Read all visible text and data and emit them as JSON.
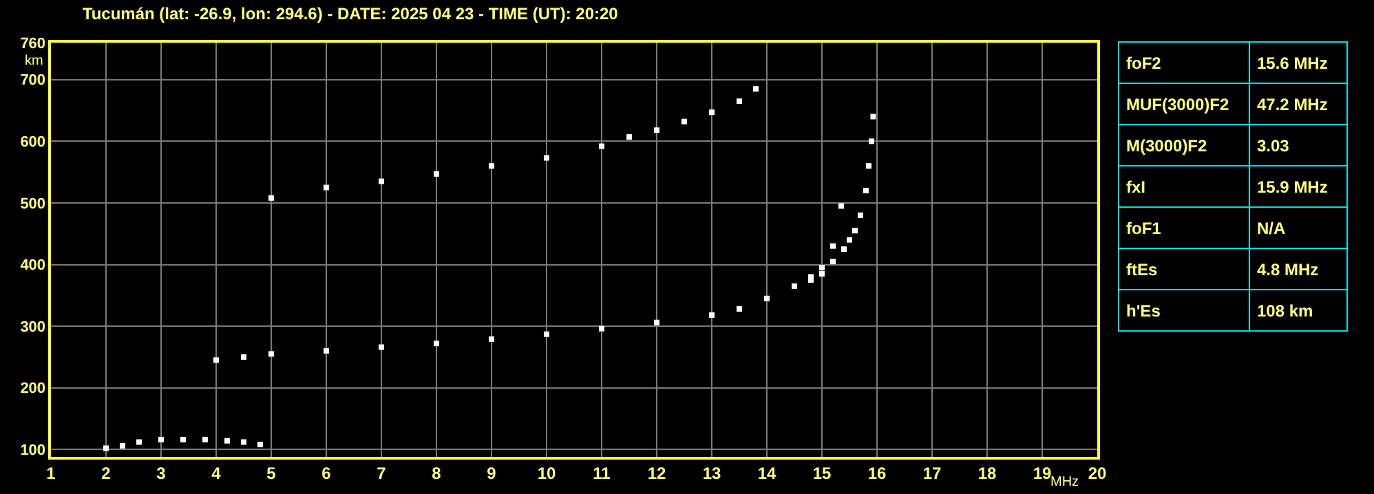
{
  "chart_data": [
    {
      "type": "scatter",
      "title": "Tucumán (lat: -26.9, lon: 294.6) - DATE: 2025 04 23 - TIME (UT): 20:20",
      "xlabel": "MHz",
      "ylabel": "km",
      "series": [
        {
          "color": "#ffffff",
          "x": [
            2,
            2.3,
            2.6,
            3,
            3.4,
            3.8,
            4.2,
            4.5,
            4.8
          ],
          "values": [
            102,
            106,
            112,
            116,
            116,
            116,
            114,
            112,
            108
          ]
        },
        {
          "color": "#ffffff",
          "x": [
            4,
            4.5,
            5,
            6,
            7,
            8,
            9,
            10,
            11,
            12,
            13,
            13.5,
            14,
            14.5,
            14.8,
            15,
            15.2,
            15.35
          ],
          "values": [
            245,
            250,
            255,
            260,
            266,
            272,
            279,
            287,
            296,
            306,
            318,
            328,
            345,
            365,
            380,
            395,
            430,
            495
          ]
        },
        {
          "color": "#ffffff",
          "x": [
            14.8,
            15,
            15.2,
            15.4,
            15.5,
            15.6,
            15.7,
            15.8,
            15.85,
            15.9,
            15.93
          ],
          "values": [
            375,
            385,
            405,
            425,
            440,
            455,
            480,
            520,
            560,
            600,
            640
          ]
        },
        {
          "color": "#ffffff",
          "x": [
            5,
            6,
            7,
            8,
            9,
            10,
            11,
            11.5,
            12,
            12.5,
            13,
            13.5,
            13.8
          ],
          "values": [
            508,
            525,
            535,
            547,
            560,
            573,
            592,
            607,
            618,
            632,
            647,
            665,
            685
          ]
        }
      ],
      "marker": "square",
      "xlim": [
        1,
        20
      ],
      "ylim": [
        88,
        760
      ],
      "xticks": [
        1,
        2,
        3,
        4,
        5,
        6,
        7,
        8,
        9,
        10,
        11,
        12,
        13,
        14,
        15,
        16,
        17,
        18,
        19,
        20
      ],
      "yticks": [
        100,
        200,
        300,
        400,
        500,
        600,
        700,
        760
      ],
      "grid": true
    },
    {
      "type": "other",
      "categories": [
        "foF2",
        "MUF(3000)F2",
        "M(3000)F2",
        "fxI",
        "foF1",
        "ftEs",
        "h'Es"
      ],
      "value_labels": [
        "15.6 MHz",
        "47.2 MHz",
        "3.03",
        "15.9 MHz",
        "N/A",
        "4.8 MHz",
        "108 km"
      ]
    }
  ]
}
